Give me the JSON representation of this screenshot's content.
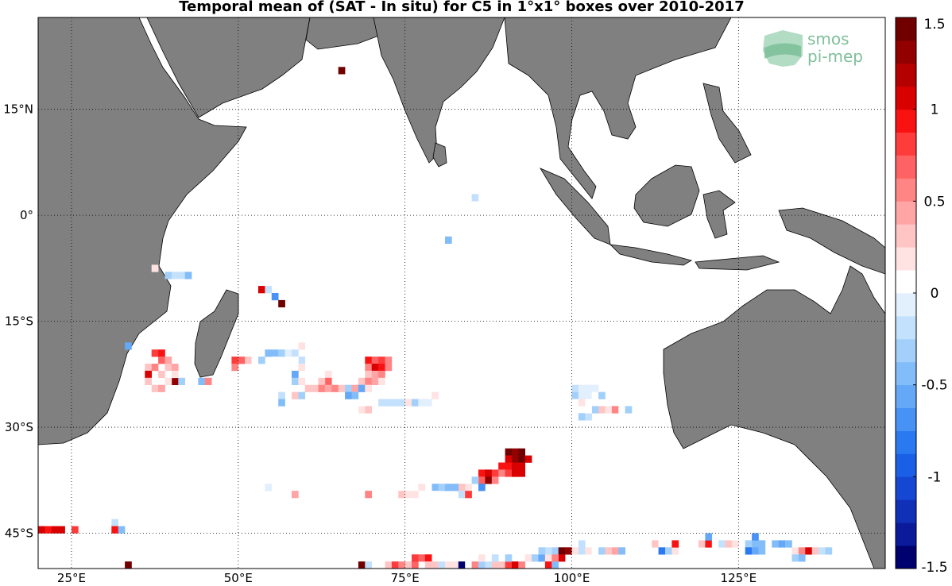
{
  "title": "Temporal mean of (SAT - In situ) for C5 in 1°x1° boxes over 2010-2017",
  "logo": {
    "line1": "smos",
    "line2": "pi-mep"
  },
  "colors": {
    "land": "#808080",
    "coast": "#000000",
    "ocean": "#ffffff",
    "grid": "#000000"
  },
  "map_extent": {
    "lon_min": 20,
    "lon_max": 147,
    "lat_min": -50,
    "lat_max": 28
  },
  "lon_ticks": [
    {
      "lon": 25,
      "label": "25°E"
    },
    {
      "lon": 50,
      "label": "50°E"
    },
    {
      "lon": 75,
      "label": "75°E"
    },
    {
      "lon": 100,
      "label": "100°E"
    },
    {
      "lon": 125,
      "label": "125°E"
    }
  ],
  "lat_ticks": [
    {
      "lat": 15,
      "label": "15°N"
    },
    {
      "lat": 0,
      "label": "0°"
    },
    {
      "lat": -15,
      "label": "15°S"
    },
    {
      "lat": -30,
      "label": "30°S"
    },
    {
      "lat": -45,
      "label": "45°S"
    }
  ],
  "colorbar": {
    "min": -1.5,
    "max": 1.5,
    "levels": 24,
    "tick_labels": [
      "1.5",
      "1",
      "0.5",
      "0",
      "-0.5",
      "-1",
      "-1.5"
    ],
    "colors": [
      "#00006e",
      "#0b1a9a",
      "#1030b8",
      "#1547d2",
      "#1a5fe6",
      "#2a79f0",
      "#4792f4",
      "#65a8f7",
      "#83bdf9",
      "#a2d0fb",
      "#c3e1fc",
      "#e2effd",
      "#ffffff",
      "#ffe3e3",
      "#ffc5c5",
      "#ffa5a5",
      "#ff8585",
      "#ff6262",
      "#ff3c3c",
      "#f81212",
      "#d80000",
      "#b50000",
      "#920000",
      "#700000"
    ]
  },
  "chart_data": {
    "type": "heatmap",
    "title": "Temporal mean of (SAT - In situ) for C5 in 1°x1° boxes over 2010-2017",
    "unit_note": "",
    "cells": [
      [
        65,
        20,
        1.5
      ],
      [
        85,
        2,
        -0.2
      ],
      [
        81,
        -4,
        -0.4
      ],
      [
        37,
        -8,
        0.2
      ],
      [
        39,
        -9,
        -0.3
      ],
      [
        40,
        -9,
        -0.2
      ],
      [
        41,
        -9,
        -0.2
      ],
      [
        42,
        -9,
        -0.5
      ],
      [
        53,
        -11,
        1.0
      ],
      [
        54,
        -11,
        -0.2
      ],
      [
        55,
        -12,
        -0.7
      ],
      [
        56,
        -13,
        1.5
      ],
      [
        33,
        -19,
        -0.6
      ],
      [
        59,
        -19,
        0.2
      ],
      [
        37,
        -20,
        0.8
      ],
      [
        38,
        -20,
        0.9
      ],
      [
        38,
        -21,
        0.7
      ],
      [
        39,
        -21,
        0.4
      ],
      [
        39,
        -22,
        0.3
      ],
      [
        40,
        -22,
        0.4
      ],
      [
        36,
        -22,
        0.3
      ],
      [
        37,
        -22,
        0.6
      ],
      [
        36,
        -23,
        1.0
      ],
      [
        38,
        -23,
        0.3
      ],
      [
        40,
        -24,
        1.3
      ],
      [
        36,
        -24,
        0.3
      ],
      [
        39,
        -24,
        0.2
      ],
      [
        40,
        -23,
        0.2
      ],
      [
        37,
        -25,
        0.3
      ],
      [
        38,
        -25,
        0.4
      ],
      [
        41,
        -24,
        -0.3
      ],
      [
        44,
        -24,
        -0.5
      ],
      [
        45,
        -24,
        0.5
      ],
      [
        49,
        -21,
        0.8
      ],
      [
        50,
        -21,
        0.7
      ],
      [
        49,
        -22,
        0.6
      ],
      [
        51,
        -21,
        0.3
      ],
      [
        52,
        -21,
        0.1
      ],
      [
        53,
        -21,
        -0.3
      ],
      [
        54,
        -20,
        -0.4
      ],
      [
        55,
        -20,
        -0.4
      ],
      [
        56,
        -20,
        -0.3
      ],
      [
        57,
        -20,
        -0.1
      ],
      [
        58,
        -20,
        -0.2
      ],
      [
        59,
        -21,
        -0.2
      ],
      [
        58,
        -21,
        0.1
      ],
      [
        59,
        -22,
        0.2
      ],
      [
        55,
        -21,
        0.1
      ],
      [
        58,
        -23,
        -0.6
      ],
      [
        58,
        -24,
        -0.3
      ],
      [
        63,
        -23,
        0.2
      ],
      [
        63,
        -24,
        0.7
      ],
      [
        62,
        -24,
        0.3
      ],
      [
        69,
        -21,
        0.9
      ],
      [
        70,
        -21,
        0.7
      ],
      [
        71,
        -21,
        0.8
      ],
      [
        72,
        -21,
        0.6
      ],
      [
        69,
        -22,
        0.6
      ],
      [
        70,
        -22,
        1.0
      ],
      [
        71,
        -22,
        0.9
      ],
      [
        72,
        -22,
        0.5
      ],
      [
        69,
        -23,
        0.3
      ],
      [
        70,
        -23,
        0.4
      ],
      [
        71,
        -23,
        0.6
      ],
      [
        68,
        -24,
        0.3
      ],
      [
        69,
        -24,
        0.5
      ],
      [
        70,
        -24,
        0.4
      ],
      [
        71,
        -24,
        0.2
      ],
      [
        59,
        -24,
        0.2
      ],
      [
        60,
        -25,
        0.3
      ],
      [
        61,
        -25,
        0.3
      ],
      [
        62,
        -25,
        0.6
      ],
      [
        63,
        -25,
        0.4
      ],
      [
        64,
        -25,
        0.6
      ],
      [
        65,
        -25,
        0.3
      ],
      [
        66,
        -25,
        -0.3
      ],
      [
        67,
        -25,
        0.4
      ],
      [
        68,
        -25,
        -0.6
      ],
      [
        69,
        -25,
        0.2
      ],
      [
        66,
        -26,
        -0.6
      ],
      [
        67,
        -26,
        -0.4
      ],
      [
        56,
        -26,
        -0.2
      ],
      [
        56,
        -27,
        -0.5
      ],
      [
        58,
        -26,
        0.3
      ],
      [
        59,
        -26,
        -0.3
      ],
      [
        71,
        -27,
        -0.2
      ],
      [
        72,
        -27,
        -0.2
      ],
      [
        73,
        -27,
        -0.2
      ],
      [
        74,
        -27,
        -0.2
      ],
      [
        75,
        -27,
        0.2
      ],
      [
        76,
        -27,
        -0.3
      ],
      [
        77,
        -27,
        -0.1
      ],
      [
        78,
        -27,
        -0.1
      ],
      [
        79,
        -26,
        0.2
      ],
      [
        68,
        -28,
        0.2
      ],
      [
        69,
        -28,
        0.3
      ],
      [
        68,
        -27,
        0.1
      ],
      [
        100,
        -25,
        -0.2
      ],
      [
        101,
        -25,
        -0.1
      ],
      [
        102,
        -25,
        -0.1
      ],
      [
        103,
        -25,
        -0.1
      ],
      [
        100,
        -26,
        -0.3
      ],
      [
        100,
        -27,
        0.1
      ],
      [
        101,
        -26,
        -0.1
      ],
      [
        102,
        -26,
        -0.1
      ],
      [
        103,
        -26,
        0.1
      ],
      [
        104,
        -26,
        -0.3
      ],
      [
        101,
        -27,
        0.2
      ],
      [
        102,
        -27,
        0.1
      ],
      [
        103,
        -28,
        0.2
      ],
      [
        104,
        -28,
        0.3
      ],
      [
        105,
        -28,
        0.2
      ],
      [
        106,
        -28,
        0.6
      ],
      [
        107,
        -28,
        0.1
      ],
      [
        108,
        -28,
        -0.3
      ],
      [
        101,
        -29,
        -0.3
      ],
      [
        102,
        -29,
        -0.2
      ],
      [
        103,
        -28,
        -0.3
      ],
      [
        102,
        -28,
        0.1
      ],
      [
        90,
        -34,
        1.5
      ],
      [
        91,
        -34,
        1.3
      ],
      [
        92,
        -34,
        1.5
      ],
      [
        90,
        -35,
        1.1
      ],
      [
        91,
        -35,
        1.3
      ],
      [
        92,
        -35,
        1.5
      ],
      [
        93,
        -35,
        1.0
      ],
      [
        89,
        -36,
        0.9
      ],
      [
        90,
        -36,
        0.9
      ],
      [
        91,
        -36,
        1.0
      ],
      [
        92,
        -36,
        1.1
      ],
      [
        86,
        -37,
        0.9
      ],
      [
        87,
        -37,
        1.0
      ],
      [
        88,
        -37,
        0.8
      ],
      [
        89,
        -37,
        0.6
      ],
      [
        90,
        -37,
        0.8
      ],
      [
        91,
        -37,
        1.0
      ],
      [
        92,
        -37,
        1.0
      ],
      [
        86,
        -38,
        0.7
      ],
      [
        87,
        -38,
        1.3
      ],
      [
        88,
        -38,
        0.6
      ],
      [
        86,
        -39,
        -0.7
      ],
      [
        85,
        -38,
        -0.3
      ],
      [
        84,
        -39,
        0.2
      ],
      [
        83,
        -39,
        0.3
      ],
      [
        79,
        -39,
        -0.5
      ],
      [
        80,
        -39,
        -0.3
      ],
      [
        81,
        -39,
        -0.4
      ],
      [
        82,
        -39,
        -0.4
      ],
      [
        83,
        -40,
        -0.2
      ],
      [
        84,
        -40,
        0.8
      ],
      [
        78,
        -39,
        0.1
      ],
      [
        77,
        -39,
        0.2
      ],
      [
        77,
        -40,
        0.1
      ],
      [
        76,
        -40,
        0.2
      ],
      [
        79,
        -40,
        0.1
      ],
      [
        54,
        -39,
        -0.1
      ],
      [
        58,
        -40,
        0.4
      ],
      [
        69,
        -40,
        0.5
      ],
      [
        74,
        -40,
        0.3
      ],
      [
        75,
        -40,
        0.2
      ],
      [
        20,
        -45,
        1.0
      ],
      [
        21,
        -45,
        0.9
      ],
      [
        22,
        -45,
        1.0
      ],
      [
        23,
        -45,
        1.0
      ],
      [
        25,
        -45,
        0.8
      ],
      [
        31,
        -44,
        -0.2
      ],
      [
        31,
        -45,
        0.9
      ],
      [
        32,
        -45,
        -0.4
      ],
      [
        33,
        -50,
        1.5
      ],
      [
        68,
        -50,
        1.5
      ],
      [
        69,
        -50,
        -0.2
      ],
      [
        72,
        -50,
        0.3
      ],
      [
        73,
        -50,
        0.8
      ],
      [
        74,
        -50,
        0.6
      ],
      [
        75,
        -50,
        0.3
      ],
      [
        76,
        -50,
        0.7
      ],
      [
        76,
        -49,
        0.8
      ],
      [
        77,
        -49,
        0.7
      ],
      [
        78,
        -49,
        0.9
      ],
      [
        78,
        -50,
        0.3
      ],
      [
        79,
        -50,
        0.3
      ],
      [
        80,
        -50,
        -0.2
      ],
      [
        81,
        -50,
        0.2
      ],
      [
        82,
        -50,
        0.2
      ],
      [
        83,
        -50,
        -1.5
      ],
      [
        84,
        -50,
        0.1
      ],
      [
        85,
        -50,
        0.5
      ],
      [
        86,
        -50,
        -0.3
      ],
      [
        87,
        -50,
        -0.2
      ],
      [
        88,
        -50,
        0.3
      ],
      [
        89,
        -50,
        0.3
      ],
      [
        90,
        -50,
        0.8
      ],
      [
        91,
        -50,
        1.0
      ],
      [
        92,
        -50,
        0.5
      ],
      [
        86,
        -49,
        0.2
      ],
      [
        88,
        -49,
        -0.2
      ],
      [
        90,
        -49,
        -0.3
      ],
      [
        93,
        -49,
        0.2
      ],
      [
        94,
        -49,
        -0.3
      ],
      [
        95,
        -49,
        -0.6
      ],
      [
        96,
        -49,
        0.2
      ],
      [
        96,
        -50,
        0.9
      ],
      [
        97,
        -50,
        -0.4
      ],
      [
        97,
        -48,
        -0.3
      ],
      [
        98,
        -48,
        1.5
      ],
      [
        99,
        -48,
        1.3
      ],
      [
        98,
        -49,
        1.0
      ],
      [
        97,
        -49,
        0.6
      ],
      [
        96,
        -48,
        -0.2
      ],
      [
        95,
        -48,
        -0.3
      ],
      [
        100,
        -48,
        0.2
      ],
      [
        101,
        -48,
        -0.2
      ],
      [
        101,
        -47,
        -0.2
      ],
      [
        102,
        -48,
        0.2
      ],
      [
        103,
        -48,
        0.1
      ],
      [
        104,
        -48,
        -0.3
      ],
      [
        105,
        -48,
        0.3
      ],
      [
        106,
        -48,
        0.4
      ],
      [
        107,
        -48,
        -0.5
      ],
      [
        112,
        -47,
        0.3
      ],
      [
        113,
        -47,
        0.1
      ],
      [
        113,
        -48,
        -0.8
      ],
      [
        114,
        -48,
        -0.3
      ],
      [
        115,
        -48,
        0.2
      ],
      [
        115,
        -47,
        0.9
      ],
      [
        117,
        -47,
        0.1
      ],
      [
        118,
        -47,
        0.1
      ],
      [
        119,
        -47,
        0.3
      ],
      [
        120,
        -47,
        0.9
      ],
      [
        121,
        -47,
        0.1
      ],
      [
        120,
        -46,
        -0.6
      ],
      [
        122,
        -47,
        -0.2
      ],
      [
        123,
        -47,
        0.3
      ],
      [
        124,
        -47,
        0.2
      ],
      [
        126,
        -47,
        -0.3
      ],
      [
        127,
        -47,
        -0.5
      ],
      [
        127,
        -46,
        -0.7
      ],
      [
        128,
        -47,
        -0.4
      ],
      [
        126,
        -48,
        -0.8
      ],
      [
        127,
        -48,
        -0.6
      ],
      [
        128,
        -48,
        -0.5
      ],
      [
        130,
        -47,
        -0.5
      ],
      [
        131,
        -47,
        -0.6
      ],
      [
        132,
        -47,
        -0.4
      ],
      [
        133,
        -48,
        0.2
      ],
      [
        134,
        -48,
        0.5
      ],
      [
        135,
        -48,
        1.0
      ],
      [
        136,
        -48,
        0.3
      ],
      [
        137,
        -48,
        -0.2
      ],
      [
        138,
        -48,
        -0.3
      ],
      [
        133,
        -49,
        -0.3
      ],
      [
        134,
        -49,
        -0.5
      ]
    ]
  }
}
